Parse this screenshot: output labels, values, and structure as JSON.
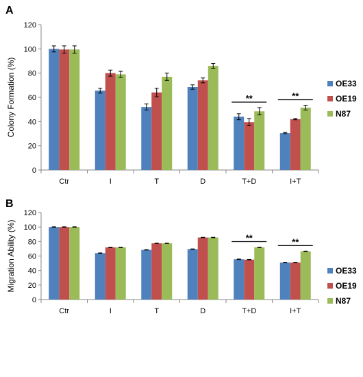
{
  "colors": {
    "OE33": "#4f81bd",
    "OE19": "#c0504d",
    "N87": "#9bbb59"
  },
  "chart_data": [
    {
      "panel": "A",
      "type": "bar",
      "ylabel": "Colony Formation (%)",
      "xlabel": "",
      "ylim": [
        0,
        120
      ],
      "yticks": [
        0,
        20,
        40,
        60,
        80,
        100,
        120
      ],
      "grid": false,
      "legend_position": "right",
      "categories": [
        "Ctr",
        "I",
        "T",
        "D",
        "T+D",
        "I+T"
      ],
      "series": [
        {
          "name": "OE33",
          "values": [
            100,
            65.5,
            52,
            68.5,
            44,
            30.5
          ],
          "errors": [
            2.5,
            2.0,
            2.5,
            1.8,
            2.5,
            0.5
          ]
        },
        {
          "name": "OE19",
          "values": [
            99.5,
            80,
            64,
            74,
            39.5,
            42
          ],
          "errors": [
            3.0,
            2.5,
            3.5,
            2.0,
            3.0,
            0.5
          ]
        },
        {
          "name": "N87",
          "values": [
            99.5,
            79,
            77,
            86,
            48.5,
            51.5
          ],
          "errors": [
            3.0,
            2.5,
            3.0,
            2.0,
            3.0,
            2.0
          ]
        }
      ],
      "annotations": [
        {
          "category": "T+D",
          "text": "**"
        },
        {
          "category": "I+T",
          "text": "**"
        }
      ]
    },
    {
      "panel": "B",
      "type": "bar",
      "ylabel": "Migration Ability (%)",
      "xlabel": "",
      "ylim": [
        0,
        120
      ],
      "yticks": [
        0,
        20,
        40,
        60,
        80,
        100,
        120
      ],
      "grid": false,
      "legend_position": "right",
      "categories": [
        "Ctr",
        "I",
        "T",
        "D",
        "T+D",
        "I+T"
      ],
      "series": [
        {
          "name": "OE33",
          "values": [
            100,
            64,
            68.5,
            69.5,
            55.5,
            51
          ],
          "errors": [
            0.3,
            0.3,
            0.3,
            0.3,
            0.3,
            0.3
          ]
        },
        {
          "name": "OE19",
          "values": [
            100,
            72,
            77.5,
            85.5,
            55,
            51
          ],
          "errors": [
            0.3,
            0.3,
            0.3,
            0.3,
            0.3,
            0.3
          ]
        },
        {
          "name": "N87",
          "values": [
            100,
            72,
            77.5,
            85.5,
            72,
            66.5
          ],
          "errors": [
            0.3,
            0.3,
            0.3,
            0.3,
            0.3,
            0.3
          ]
        }
      ],
      "annotations": [
        {
          "category": "T+D",
          "text": "**"
        },
        {
          "category": "I+T",
          "text": "**"
        }
      ]
    }
  ]
}
